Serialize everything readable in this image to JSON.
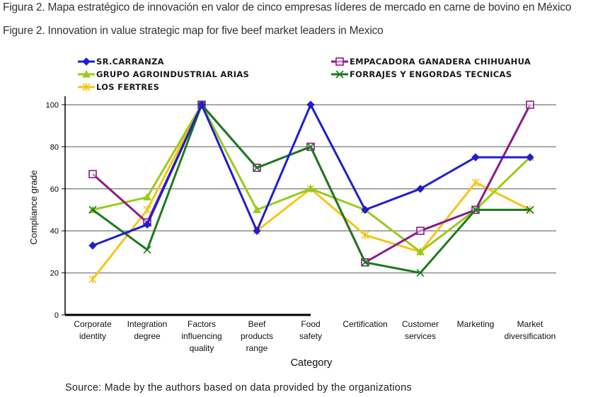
{
  "captions": {
    "es": "Figura 2.  Mapa estratégico de innovación en valor de cinco empresas líderes de mercado en carne de bovino en México",
    "en": "Figure 2.  Innovation in value strategic map for five beef market leaders in Mexico"
  },
  "source": "Source: Made by the authors based on data provided by the organizations",
  "chart_data": {
    "type": "line",
    "title": "",
    "xlabel": "Category",
    "ylabel": "Compliance grade",
    "ylim": [
      0,
      100
    ],
    "yticks": [
      0,
      20,
      40,
      60,
      80,
      100
    ],
    "grid": true,
    "legend_position": "top",
    "categories": [
      [
        "Corporate",
        "identity"
      ],
      [
        "Integration",
        "degree"
      ],
      [
        "Factors",
        "influencing",
        "quality"
      ],
      [
        "Beef",
        "products",
        "range"
      ],
      [
        "Food",
        "safety"
      ],
      [
        "Certification"
      ],
      [
        "Customer",
        "services"
      ],
      [
        "Marketing"
      ],
      [
        "Market",
        "diversification"
      ]
    ],
    "series": [
      {
        "name": "SR.CARRANZA",
        "color": "#1f1fd0",
        "marker": "diamond",
        "values": [
          33,
          43,
          100,
          40,
          100,
          50,
          60,
          75,
          75
        ]
      },
      {
        "name": "EMPACADORA GANADERA CHIHUAHUA",
        "color": "#8b1a8b",
        "marker": "square",
        "values": [
          67,
          44,
          100,
          70,
          80,
          25,
          40,
          50,
          100
        ]
      },
      {
        "name": "GRUPO AGROINDUSTRIAL ARIAS",
        "color": "#99cc1a",
        "marker": "triangle",
        "values": [
          50,
          56,
          100,
          50,
          60,
          50,
          30,
          50,
          75
        ]
      },
      {
        "name": "FORRAJES Y ENGORDAS TECNICAS",
        "color": "#1e7a1e",
        "marker": "x",
        "values": [
          50,
          31,
          100,
          70,
          80,
          25,
          20,
          50,
          50
        ]
      },
      {
        "name": "LOS FERTRES",
        "color": "#f5c518",
        "marker": "star",
        "values": [
          17,
          50,
          100,
          40,
          60,
          38,
          30,
          63,
          50
        ]
      }
    ]
  }
}
